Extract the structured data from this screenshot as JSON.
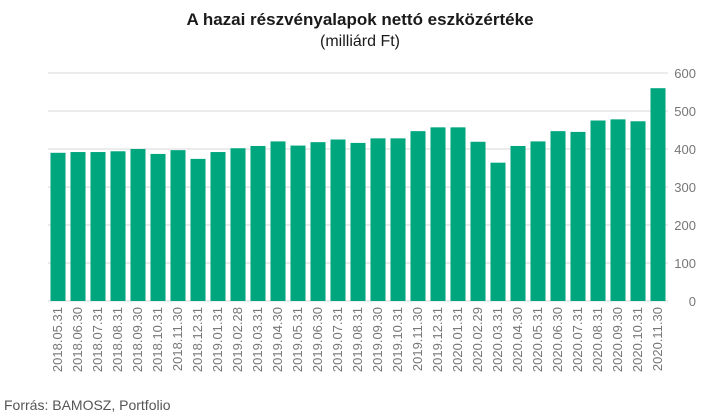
{
  "title": "A hazai részvényalapok nettó eszközértéke",
  "subtitle": "(milliárd Ft)",
  "source": "Forrás: BAMOSZ, Portfolio",
  "colors": {
    "bar": "#00a67e",
    "grid": "#d9d9d9",
    "axis_text": "#777777"
  },
  "chart_data": {
    "type": "bar",
    "title": "A hazai részvényalapok nettó eszközértéke",
    "subtitle": "(milliárd Ft)",
    "xlabel": "",
    "ylabel": "",
    "ylim": [
      0,
      600
    ],
    "yticks": [
      0,
      100,
      200,
      300,
      400,
      500,
      600
    ],
    "y_axis_side": "right",
    "grid": true,
    "categories": [
      "2018.05.31",
      "2018.06.30",
      "2018.07.31",
      "2018.08.31",
      "2018.09.30",
      "2018.10.31",
      "2018.11.30",
      "2018.12.31",
      "2019.01.31",
      "2019.02.28",
      "2019.03.31",
      "2019.04.30",
      "2019.05.31",
      "2019.06.30",
      "2019.07.31",
      "2019.08.31",
      "2019.09.30",
      "2019.10.31",
      "2019.11.30",
      "2019.12.31",
      "2020.01.31",
      "2020.02.29",
      "2020.03.31",
      "2020.04.30",
      "2020.05.31",
      "2020.06.30",
      "2020.07.31",
      "2020.08.31",
      "2020.09.30",
      "2020.10.31",
      "2020.11.30"
    ],
    "values": [
      390,
      392,
      392,
      394,
      400,
      387,
      397,
      374,
      392,
      402,
      408,
      420,
      409,
      418,
      425,
      416,
      428,
      428,
      447,
      457,
      457,
      419,
      364,
      408,
      420,
      447,
      445,
      475,
      478,
      473,
      560
    ]
  }
}
